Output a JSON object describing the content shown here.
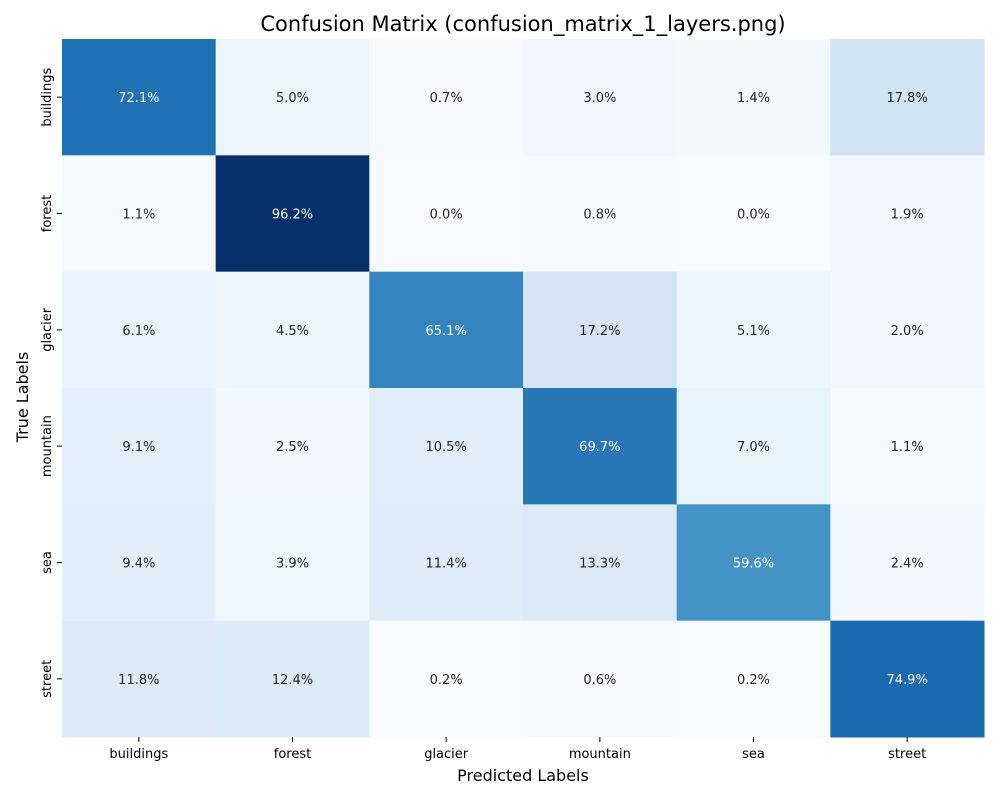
{
  "chart_data": {
    "type": "heatmap",
    "title": "Confusion Matrix (confusion_matrix_1_layers.png)",
    "xlabel": "Predicted Labels",
    "ylabel": "True Labels",
    "x_categories": [
      "buildings",
      "forest",
      "glacier",
      "mountain",
      "sea",
      "street"
    ],
    "y_categories": [
      "buildings",
      "forest",
      "glacier",
      "mountain",
      "sea",
      "street"
    ],
    "values": [
      [
        72.1,
        5.0,
        0.7,
        3.0,
        1.4,
        17.8
      ],
      [
        1.1,
        96.2,
        0.0,
        0.8,
        0.0,
        1.9
      ],
      [
        6.1,
        4.5,
        65.1,
        17.2,
        5.1,
        2.0
      ],
      [
        9.1,
        2.5,
        10.5,
        69.7,
        7.0,
        1.1
      ],
      [
        9.4,
        3.9,
        11.4,
        13.3,
        59.6,
        2.4
      ],
      [
        11.8,
        12.4,
        0.2,
        0.6,
        0.2,
        74.9
      ]
    ],
    "value_suffix": "%",
    "colormap": "Blues",
    "vmin": 0.0,
    "vmax": 96.2,
    "colorbar": false
  }
}
